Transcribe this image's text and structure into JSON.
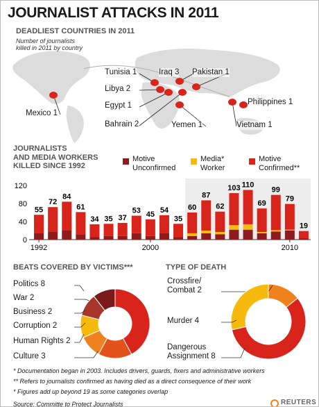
{
  "title": "JOURNALIST ATTACKS IN 2011",
  "chart_data": [
    {
      "type": "map",
      "title": "DEADLIEST COUNTRIES IN 2011",
      "subtitle": "Number of journalists\nkilled in 2011 by country",
      "categories": [
        "Tunisia",
        "Iraq",
        "Pakistan",
        "Libya",
        "Egypt",
        "Mexico",
        "Philippines",
        "Bahrain",
        "Yemen",
        "Vietnam"
      ],
      "values": [
        1,
        3,
        1,
        2,
        1,
        1,
        1,
        2,
        1,
        1
      ],
      "color": "#d9241c"
    },
    {
      "type": "bar",
      "stacked": true,
      "title": "JOURNALISTS\nAND MEDIA WORKERS\nKILLED SINCE 1992",
      "x": [
        1992,
        1993,
        1994,
        1995,
        1996,
        1997,
        1998,
        1999,
        2000,
        2001,
        2002,
        2003,
        2004,
        2005,
        2006,
        2007,
        2008,
        2009,
        2010,
        2011
      ],
      "xlim": [
        1991.5,
        2011.5
      ],
      "xticks": [
        1992,
        2000,
        2010
      ],
      "ylim": [
        0,
        120
      ],
      "yticks": [
        0,
        40,
        80,
        120
      ],
      "series": [
        {
          "name": "Motive\nUnconfirmed",
          "color": "#8e1b1e",
          "values": [
            15,
            18,
            20,
            12,
            6,
            8,
            8,
            14,
            8,
            15,
            6,
            8,
            14,
            12,
            22,
            22,
            14,
            18,
            20,
            3
          ]
        },
        {
          "name": "Media*\nWorker",
          "color": "#f6b90e",
          "values": [
            null,
            null,
            null,
            null,
            null,
            null,
            null,
            null,
            null,
            null,
            null,
            6,
            6,
            5,
            10,
            12,
            3,
            3,
            2,
            0
          ]
        },
        {
          "name": "Motive\nConfirmed**",
          "color": "#d9241c",
          "values": [
            40,
            54,
            64,
            49,
            28,
            27,
            29,
            39,
            37,
            39,
            29,
            46,
            67,
            45,
            71,
            76,
            52,
            78,
            57,
            16
          ]
        }
      ],
      "totals": [
        55,
        72,
        84,
        61,
        34,
        35,
        37,
        53,
        45,
        54,
        35,
        60,
        87,
        62,
        103,
        110,
        69,
        99,
        79,
        19
      ]
    },
    {
      "type": "donut",
      "title": "BEATS COVERED BY VICTIMS***",
      "categories": [
        "Politics",
        "War",
        "Business",
        "Corruption",
        "Human Rights",
        "Culture"
      ],
      "values": [
        8,
        2,
        2,
        2,
        2,
        3
      ],
      "colors": [
        "#d9241c",
        "#7a1a1a",
        "#a8362a",
        "#f6b90e",
        "#f0821e",
        "#e4521b"
      ]
    },
    {
      "type": "donut",
      "title": "TYPE OF DEATH",
      "categories": [
        "Crossfire/\nCombat",
        "Murder",
        "Dangerous\nAssignment"
      ],
      "values": [
        2,
        4,
        8
      ],
      "colors": [
        "#f0821e",
        "#f6b90e",
        "#d9241c"
      ]
    }
  ],
  "footnotes": [
    "* Documentation began in 2003. Includes drivers, guards, fixers and administrative workers",
    "** Refers to journalists confirmed as having died as a direct consequence of their work",
    "* Figures add up beyond 19 as some categories overlap"
  ],
  "source": "Source: Committe to Protect Journalists",
  "brand": "REUTERS"
}
